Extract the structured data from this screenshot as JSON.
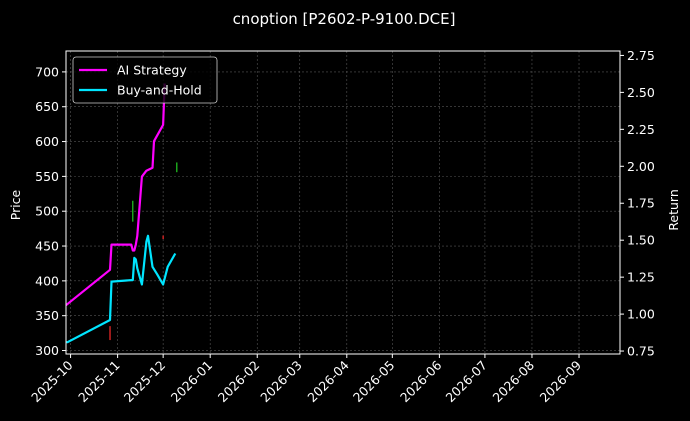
{
  "chart_data": {
    "type": "line",
    "title": "cnoption [P2602-P-9100.DCE]",
    "ylabel": "Price",
    "ylabel_right": "Return",
    "x_ticks": [
      "2025-10",
      "2025-11",
      "2025-12",
      "2026-01",
      "2026-02",
      "2026-03",
      "2026-04",
      "2026-05",
      "2026-06",
      "2026-07",
      "2026-08",
      "2026-09"
    ],
    "xlim": [
      "2025-09-28",
      "2026-09-28"
    ],
    "ylim": [
      295,
      730
    ],
    "ylim_right": [
      0.73,
      2.78
    ],
    "y_ticks": [
      300,
      350,
      400,
      450,
      500,
      550,
      600,
      650,
      700
    ],
    "y_ticks_right": [
      0.75,
      1.0,
      1.25,
      1.5,
      1.75,
      2.0,
      2.25,
      2.5,
      2.75
    ],
    "grid": true,
    "legend": "top-left",
    "series": [
      {
        "name": "AI Strategy",
        "axis": "right",
        "color": "#ff00ff",
        "x": [
          "2025-09-28",
          "2025-10-27",
          "2025-10-28",
          "2025-11-10",
          "2025-11-11",
          "2025-11-12",
          "2025-11-13",
          "2025-11-14",
          "2025-11-17",
          "2025-11-20",
          "2025-11-24",
          "2025-11-25",
          "2025-12-01",
          "2025-12-02"
        ],
        "values": [
          1.06,
          1.3,
          1.47,
          1.47,
          1.43,
          1.43,
          1.47,
          1.53,
          1.93,
          1.97,
          1.99,
          2.17,
          2.28,
          2.56
        ]
      },
      {
        "name": "Buy-and-Hold",
        "axis": "right",
        "color": "#00e5ff",
        "x": [
          "2025-09-28",
          "2025-09-29",
          "2025-10-27",
          "2025-10-28",
          "2025-11-10",
          "2025-11-11",
          "2025-11-12",
          "2025-11-13",
          "2025-11-14",
          "2025-11-17",
          "2025-11-20",
          "2025-11-21",
          "2025-11-24",
          "2025-11-27",
          "2025-12-01",
          "2025-12-04",
          "2025-12-09"
        ],
        "values": [
          0.81,
          0.81,
          0.96,
          1.22,
          1.23,
          1.23,
          1.38,
          1.37,
          1.31,
          1.2,
          1.49,
          1.53,
          1.32,
          1.27,
          1.2,
          1.32,
          1.41
        ]
      }
    ],
    "markers": [
      {
        "x": "2025-10-27",
        "y_low": 315,
        "y_high": 335,
        "color": "#ff2a2a"
      },
      {
        "x": "2025-11-11",
        "y_low": 485,
        "y_high": 515,
        "color": "#22cc22"
      },
      {
        "x": "2025-12-01",
        "y_low": 460,
        "y_high": 465,
        "color": "#ff2a2a"
      },
      {
        "x": "2025-12-10",
        "y_low": 556,
        "y_high": 570,
        "color": "#22cc22"
      }
    ]
  }
}
